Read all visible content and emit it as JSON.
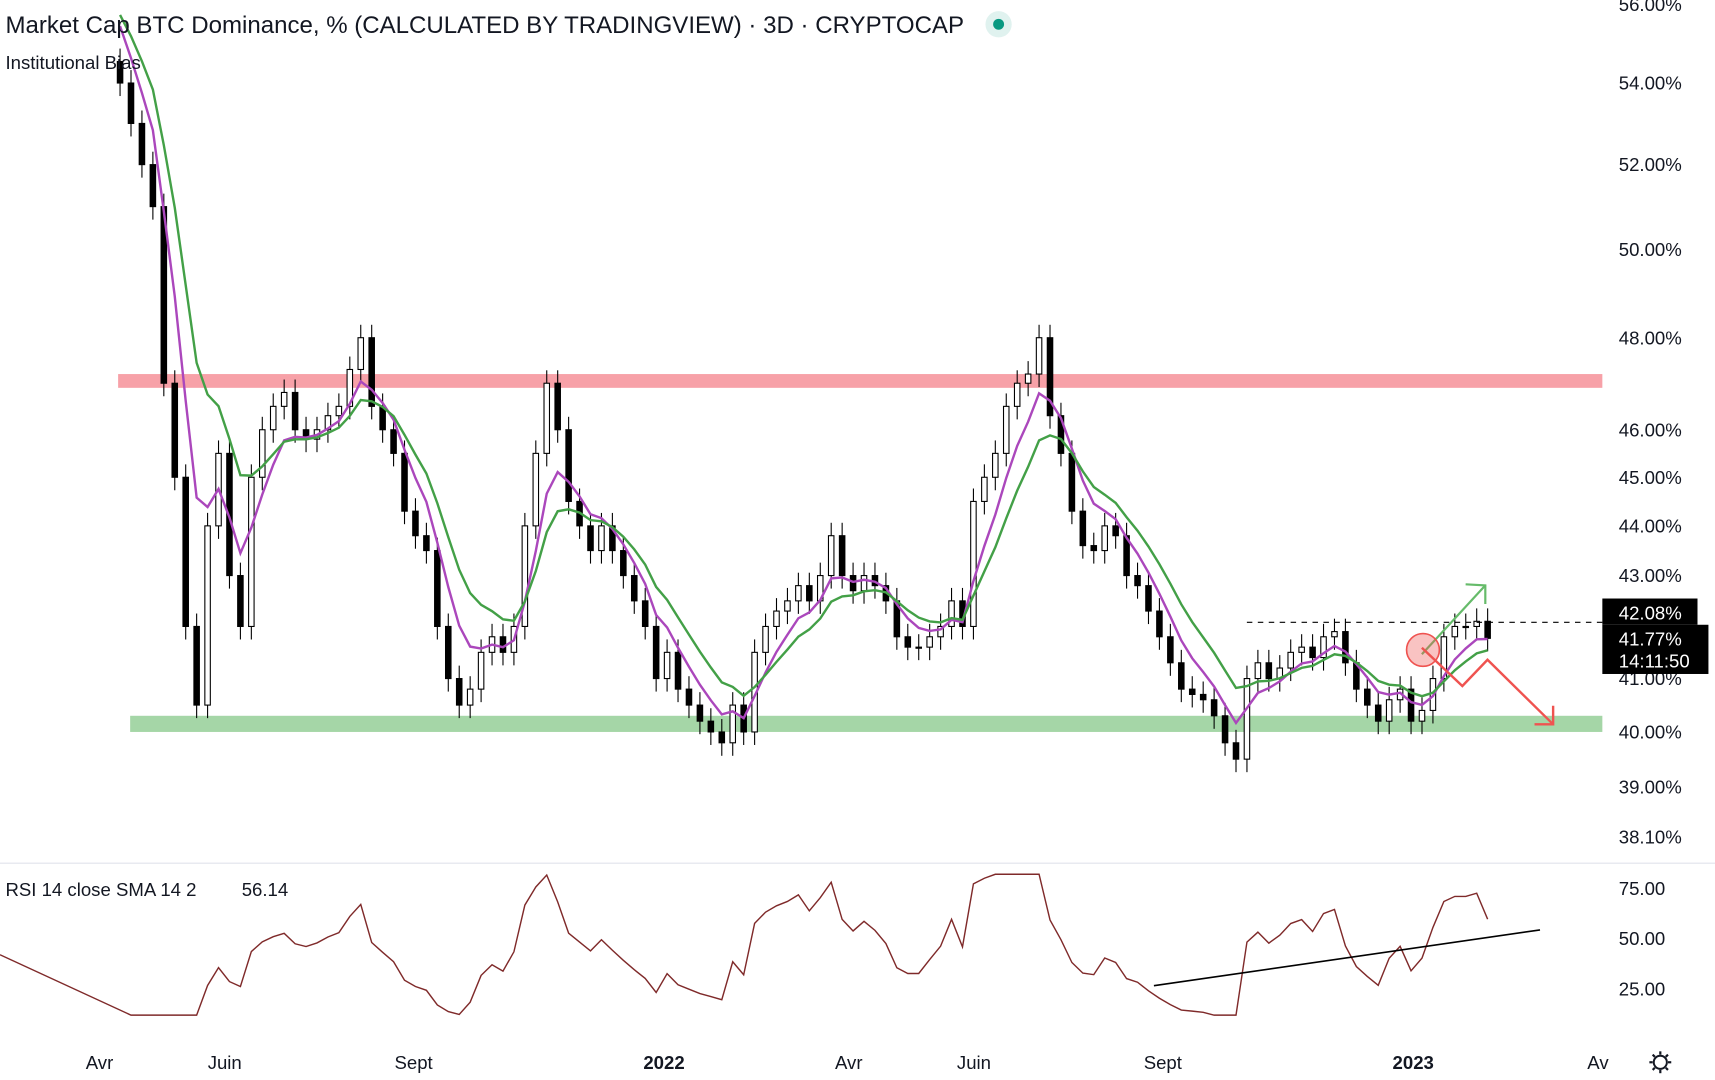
{
  "header": {
    "title": "Market Cap BTC Dominance, % (CALCULATED BY TRADINGVIEW) · 3D · CRYPTOCAP",
    "indicator": "Institutional Bias",
    "status_color": "#089981"
  },
  "rsi_pane": {
    "label": "RSI 14 close SMA 14 2",
    "value": "56.14",
    "value_color": "#7f2a2a",
    "ticks": [
      "75.00",
      "50.00",
      "25.00"
    ],
    "tick_values": [
      75,
      50,
      25
    ]
  },
  "chart_data": {
    "type": "candlestick",
    "title": "Market Cap BTC Dominance, % (CALCULATED BY TRADINGVIEW) · 3D · CRYPTOCAP",
    "scale": "log",
    "ylim": [
      38.1,
      56
    ],
    "y_ticks": [
      "56.00%",
      "54.00%",
      "52.00%",
      "50.00%",
      "48.00%",
      "46.00%",
      "45.00%",
      "44.00%",
      "43.00%",
      "41.00%",
      "40.00%",
      "39.00%",
      "38.10%"
    ],
    "y_tick_values": [
      56,
      54,
      52,
      50,
      48,
      46,
      45,
      44,
      43,
      41,
      40,
      39,
      38.1
    ],
    "x_ticks": [
      {
        "label": "Avr",
        "date": "2021-04-01",
        "bold": false
      },
      {
        "label": "Juin",
        "date": "2021-06-01",
        "bold": false
      },
      {
        "label": "Sept",
        "date": "2021-09-01",
        "bold": false
      },
      {
        "label": "2022",
        "date": "2022-01-01",
        "bold": true
      },
      {
        "label": "Avr",
        "date": "2022-04-01",
        "bold": false
      },
      {
        "label": "Juin",
        "date": "2022-06-01",
        "bold": false
      },
      {
        "label": "Sept",
        "date": "2022-09-01",
        "bold": false
      },
      {
        "label": "2023",
        "date": "2023-01-01",
        "bold": true
      },
      {
        "label": "Av",
        "date": "2023-04-01",
        "bold": false
      }
    ],
    "closes_start": "2021-04-11",
    "closes_step_days": 5.33,
    "closes": [
      54,
      53,
      52,
      51,
      47,
      45,
      42,
      40.5,
      44,
      45.5,
      43,
      42,
      45,
      46,
      46.5,
      46.8,
      46,
      45.8,
      46,
      46.3,
      46.5,
      47.3,
      48,
      46.5,
      46,
      45.5,
      44.3,
      43.8,
      43.5,
      42,
      41,
      40.5,
      40.8,
      41.5,
      41.8,
      41.5,
      42,
      44,
      45.5,
      47,
      46,
      44.5,
      44,
      43.5,
      44,
      43.5,
      43,
      42.5,
      42,
      41,
      41.5,
      40.8,
      40.5,
      40.2,
      40,
      39.8,
      40.5,
      40,
      41.5,
      42,
      42.3,
      42.5,
      42.8,
      42.5,
      43,
      43.8,
      43,
      42.7,
      43,
      42.8,
      42.5,
      41.8,
      41.6,
      41.6,
      41.8,
      42,
      42.5,
      42,
      44.5,
      45,
      45.5,
      46.5,
      47,
      47.2,
      48,
      46.3,
      45.5,
      44.3,
      43.6,
      43.5,
      44,
      43.8,
      43,
      42.8,
      42.3,
      41.8,
      41.3,
      40.8,
      40.7,
      40.6,
      40.3,
      39.8,
      39.5,
      41,
      41.3,
      41,
      41.2,
      41.5,
      41.6,
      41.4,
      41.8,
      41.9,
      41.3,
      40.8,
      40.5,
      40.2,
      40.6,
      40.8,
      40.2,
      40.4,
      41,
      41.8,
      42,
      42,
      42.1,
      41.77
    ],
    "zones": [
      {
        "kind": "resistance",
        "from": 46.9,
        "to": 47.2,
        "color": "#f7a1a8"
      },
      {
        "kind": "support",
        "from": 40.0,
        "to": 40.3,
        "color": "#a5d6a7"
      }
    ],
    "dashed_level": 42.08,
    "price_tags": [
      {
        "value": "42.08%"
      },
      {
        "value": "41.77%",
        "countdown": "14:11:50"
      }
    ],
    "ma_colors": {
      "fast": "#ab47bc",
      "slow": "#43a047"
    },
    "arrow_colors": {
      "up": "#66bb6a",
      "down": "#ef5350"
    }
  }
}
